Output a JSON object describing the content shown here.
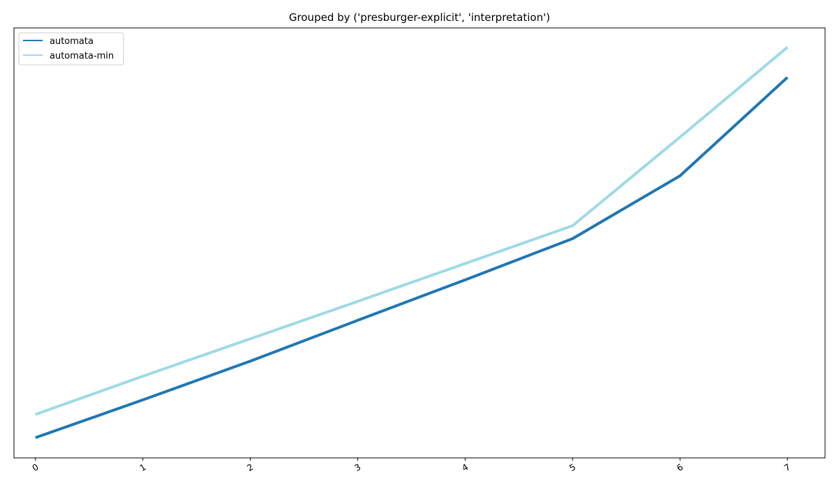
{
  "chart_data": {
    "type": "line",
    "title": "Grouped by ('presburger-explicit', 'interpretation')",
    "xlabel": "",
    "ylabel": "",
    "x": [
      0,
      1,
      2,
      3,
      4,
      5,
      6,
      7
    ],
    "xlim": [
      -0.2,
      7.35
    ],
    "ylim": [
      0,
      1
    ],
    "y_tick_labels_shown": false,
    "grid": false,
    "legend_position": "top-left",
    "series": [
      {
        "name": "automata",
        "color": "#1f77b4",
        "values": [
          0.047,
          0.135,
          0.225,
          0.32,
          0.414,
          0.51,
          0.656,
          0.885
        ]
      },
      {
        "name": "automata-min",
        "color": "#9edae5",
        "values": [
          0.101,
          0.19,
          0.277,
          0.364,
          0.452,
          0.54,
          0.746,
          0.955
        ]
      }
    ]
  }
}
